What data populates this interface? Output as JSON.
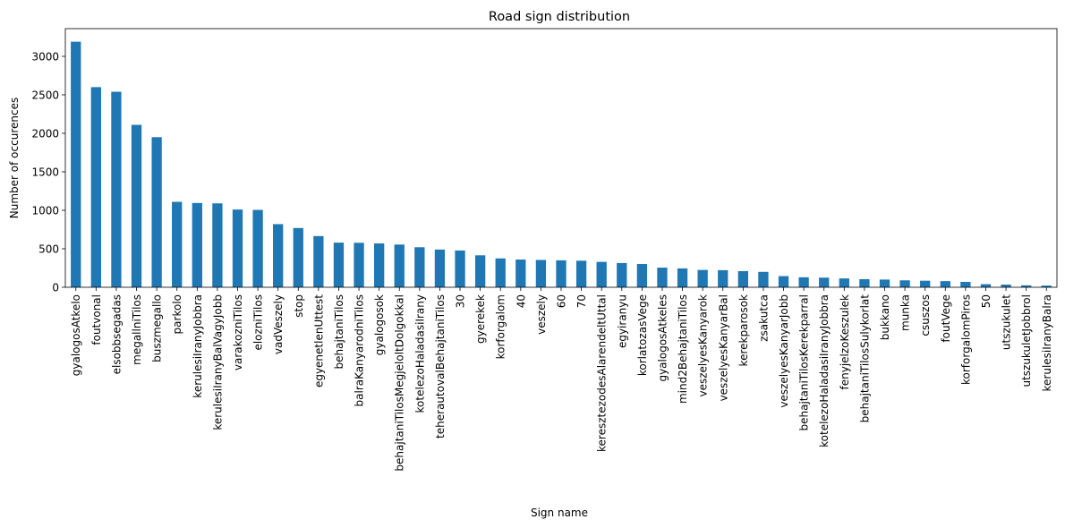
{
  "chart_data": {
    "type": "bar",
    "title": "Road sign distribution",
    "xlabel": "Sign name",
    "ylabel": "Number of occurences",
    "ylim": [
      0,
      3360
    ],
    "yticks": [
      0,
      500,
      1000,
      1500,
      2000,
      2500,
      3000
    ],
    "grid": false,
    "bar_color": "#1f77b4",
    "categories": [
      "gyalogosAtkelo",
      "foutvonal",
      "elsobbsegadas",
      "megallniTilos",
      "buszmegallo",
      "parkolo",
      "kerulesiIranyJobbra",
      "kerulesiIranyBalVagyJobb",
      "varakozniTilos",
      "elozniTilos",
      "vadVeszely",
      "stop",
      "egyenetlenUttest",
      "behajtaniTilos",
      "balraKanyarodniTilos",
      "gyalogosok",
      "behajtaniTilosMegjeloltDolgokkal",
      "kotelezoHaladasiIrany",
      "teherautovalBehajtaniTilos",
      "30",
      "gyerekek",
      "korforgalom",
      "40",
      "veszely",
      "60",
      "70",
      "keresztezodesAlarendeltUttal",
      "egyiranyu",
      "korlatozasVege",
      "gyalogosAtkeles",
      "mind2BehajtaniTilos",
      "veszelyesKanyarok",
      "veszelyesKanyarBal",
      "kerekparosok",
      "zsakutca",
      "veszelyesKanyarJobb",
      "behajtaniTilosKerekparral",
      "kotelezoHaladasiIranyJobbra",
      "fenyjelzoKeszulek",
      "behajtaniTilosSulykorlat",
      "bukkano",
      "munka",
      "csuszos",
      "foutVege",
      "korforgalomPiros",
      "50",
      "utszukulet",
      "utszukuletJobbrol",
      "kerulesiIranyBalra"
    ],
    "values": [
      3190,
      2600,
      2540,
      2110,
      1950,
      1110,
      1095,
      1090,
      1010,
      1005,
      820,
      770,
      665,
      580,
      578,
      570,
      555,
      520,
      490,
      478,
      415,
      375,
      360,
      355,
      350,
      345,
      330,
      315,
      302,
      255,
      245,
      225,
      222,
      210,
      200,
      145,
      130,
      125,
      115,
      105,
      100,
      90,
      85,
      80,
      70,
      40,
      35,
      25,
      22
    ]
  }
}
